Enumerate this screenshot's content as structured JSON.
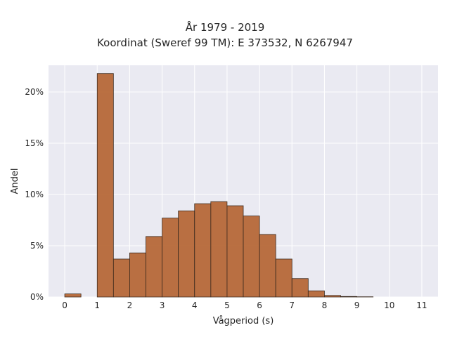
{
  "chart_data": {
    "type": "bar",
    "title": "År 1979 - 2019",
    "subtitle": "Koordinat (Sweref 99 TM): E 373532, N 6267947",
    "xlabel": "Vågperiod (s)",
    "ylabel": "Andel",
    "xlim": [
      -0.5,
      11.5
    ],
    "ylim": [
      0,
      22.6
    ],
    "x_ticks": [
      0,
      1,
      2,
      3,
      4,
      5,
      6,
      7,
      8,
      9,
      10,
      11
    ],
    "x_tick_labels": [
      "0",
      "1",
      "2",
      "3",
      "4",
      "5",
      "6",
      "7",
      "8",
      "9",
      "10",
      "11"
    ],
    "y_ticks": [
      0,
      5,
      10,
      15,
      20
    ],
    "y_tick_labels": [
      "0%",
      "5%",
      "10%",
      "15%",
      "20%"
    ],
    "bin_width": 0.5,
    "bin_starts": [
      0,
      1,
      1.5,
      2,
      2.5,
      3,
      3.5,
      4,
      4.5,
      5,
      5.5,
      6,
      6.5,
      7,
      7.5,
      8,
      8.5,
      9
    ],
    "values": [
      0.3,
      21.8,
      3.7,
      4.3,
      5.9,
      7.7,
      8.4,
      9.1,
      9.3,
      8.9,
      7.9,
      6.1,
      3.7,
      1.8,
      0.6,
      0.15,
      0.05,
      0.02
    ],
    "grid": true,
    "bar_color": "#b4622f",
    "bar_edge_color": "#3a2a1e",
    "background_color": "#eaeaf2",
    "grid_color": "#ffffff"
  }
}
